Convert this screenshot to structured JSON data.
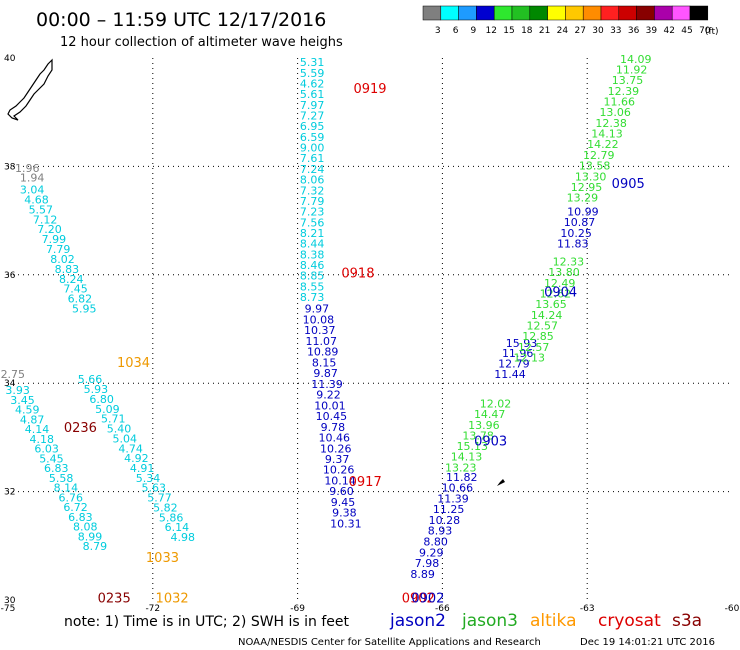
{
  "header": {
    "title": "00:00 – 11:59 UTC 12/17/2016",
    "subtitle": "12 hour collection of altimeter wave heighs"
  },
  "legend": {
    "unit": "(ft)",
    "swatches": [
      {
        "label": "3",
        "color": "#7f7f7f"
      },
      {
        "label": "6",
        "color": "#00ffff"
      },
      {
        "label": "9",
        "color": "#1e9bff"
      },
      {
        "label": "12",
        "color": "#0000d0"
      },
      {
        "label": "15",
        "color": "#2ee82e"
      },
      {
        "label": "18",
        "color": "#22c022"
      },
      {
        "label": "21",
        "color": "#008800"
      },
      {
        "label": "24",
        "color": "#ffff00"
      },
      {
        "label": "27",
        "color": "#ffc800"
      },
      {
        "label": "30",
        "color": "#ff8c00"
      },
      {
        "label": "33",
        "color": "#ff2020"
      },
      {
        "label": "36",
        "color": "#cc0000"
      },
      {
        "label": "39",
        "color": "#880000"
      },
      {
        "label": "42",
        "color": "#aa00aa"
      },
      {
        "label": "45",
        "color": "#ff55ff"
      },
      {
        "label": "70",
        "color": "#000000"
      }
    ]
  },
  "map": {
    "lon_range": [
      -75,
      -60
    ],
    "lat_range": [
      30,
      40
    ],
    "lon_ticks": [
      "-75",
      "-72",
      "-69",
      "-66",
      "-63",
      "-60"
    ],
    "lat_ticks": [
      "40",
      "38",
      "36",
      "34",
      "32",
      "30"
    ]
  },
  "colors": {
    "gray": "#808080",
    "cyan": "#00ccdd",
    "blue": "#0000c0",
    "green": "#33dd33",
    "red": "#dd0000",
    "orange": "#ee9900",
    "darkred": "#880000"
  },
  "tracks": [
    {
      "name": "track-gray",
      "color": "gray",
      "lon0": -74.6,
      "lat0": 37.9,
      "dlon": 0.1,
      "dlat": -0.18,
      "values": [
        "1.96",
        "1.94"
      ]
    },
    {
      "name": "track-cyan-left",
      "color": "cyan",
      "lon0": -74.5,
      "lat0": 37.5,
      "dlon": 0.09,
      "dlat": -0.183,
      "values": [
        "3.04",
        "4.68",
        "5.57",
        "7.12",
        "7.20",
        "7.99",
        "7.79",
        "8.02",
        "8.83",
        "8.24",
        "7.45",
        "6.82",
        "5.95"
      ]
    },
    {
      "name": "track-gray-2",
      "color": "gray",
      "lon0": -74.9,
      "lat0": 34.1,
      "dlon": 0,
      "dlat": 0,
      "values": [
        "2.75"
      ]
    },
    {
      "name": "track-cyan-left-2",
      "color": "cyan",
      "lon0": -74.8,
      "lat0": 33.8,
      "dlon": 0.1,
      "dlat": -0.18,
      "values": [
        "3.93",
        "3.45",
        "4.59",
        "4.87",
        "4.14",
        "4.18",
        "6.03",
        "5.45",
        "6.83",
        "5.58",
        "8.14",
        "6.76",
        "6.72",
        "6.83",
        "8.08",
        "8.99",
        "8.79"
      ]
    },
    {
      "name": "track-cyan-mid",
      "color": "cyan",
      "lon0": -73.3,
      "lat0": 34.0,
      "dlon": 0.12,
      "dlat": -0.182,
      "values": [
        "5.66",
        "5.93",
        "6.80",
        "5.09",
        "5.71",
        "5.40",
        "5.04",
        "4.74",
        "4.92",
        "4.91",
        "5.34",
        "5.63",
        "5.77",
        "5.82",
        "5.86",
        "6.14",
        "4.98"
      ]
    },
    {
      "name": "track-0919",
      "color": "cyan",
      "lon0": -68.7,
      "lat0": 39.85,
      "dlon": 0,
      "dlat": -0.197,
      "values": [
        "5.31",
        "5.59",
        "4.62",
        "5.61",
        "7.97",
        "7.27",
        "6.95",
        "6.59",
        "9.00",
        "7.61",
        "7.24",
        "8.06",
        "7.32",
        "7.79",
        "7.23",
        "7.56",
        "8.21",
        "8.44",
        "8.38",
        "8.46",
        "8.85",
        "8.55",
        "8.73"
      ]
    },
    {
      "name": "track-0918-blue",
      "color": "blue",
      "lon0": -68.6,
      "lat0": 35.3,
      "dlon": 0.03,
      "dlat": -0.198,
      "values": [
        "9.97",
        "10.08",
        "10.37",
        "11.07",
        "10.89",
        "8.15",
        "9.87",
        "11.39",
        "9.22",
        "10.01",
        "10.45",
        "9.78",
        "10.46",
        "10.26",
        "9.37",
        "10.26",
        "10.14",
        "9.60",
        "9.45",
        "9.38",
        "10.31"
      ]
    },
    {
      "name": "track-0903-blue",
      "color": "blue",
      "lon0": -65.6,
      "lat0": 32.2,
      "dlon": -0.09,
      "dlat": -0.199,
      "values": [
        "11.82",
        "10.66",
        "11.39",
        "11.25",
        "10.28",
        "8.93",
        "8.80",
        "9.29",
        "7.98",
        "8.89"
      ]
    },
    {
      "name": "track-0903-green",
      "color": "green",
      "lon0": -64.9,
      "lat0": 33.55,
      "dlon": -0.12,
      "dlat": -0.196,
      "values": [
        "12.02",
        "14.47",
        "13.96",
        "13.78",
        "15.13",
        "14.13",
        "13.23"
      ]
    },
    {
      "name": "track-0904-blue",
      "color": "blue",
      "lon0": -64.6,
      "lat0": 34.1,
      "dlon": 0.08,
      "dlat": 0.19,
      "values": [
        "11.44",
        "12.79",
        "11.96",
        "15.93"
      ]
    },
    {
      "name": "track-0904-green",
      "color": "green",
      "lon0": -64.2,
      "lat0": 34.4,
      "dlon": 0.09,
      "dlat": 0.197,
      "values": [
        "12.13",
        "12.57",
        "12.85",
        "12.57",
        "14.24",
        "13.65",
        "12.62",
        "12.49",
        "13.80",
        "12.33"
      ]
    },
    {
      "name": "track-0905-blue",
      "color": "blue",
      "lon0": -63.3,
      "lat0": 36.5,
      "dlon": 0.07,
      "dlat": 0.199,
      "values": [
        "11.83",
        "10.25",
        "10.87",
        "10.99"
      ]
    },
    {
      "name": "track-0905-green",
      "color": "green",
      "lon0": -63.1,
      "lat0": 37.35,
      "dlon": 0.085,
      "dlat": 0.197,
      "values": [
        "13.29",
        "12.95",
        "13.30",
        "13.58",
        "12.79",
        "14.22",
        "14.13",
        "12.38",
        "13.06",
        "11.66",
        "12.39",
        "13.75",
        "11.92",
        "14.09"
      ]
    }
  ],
  "pass_labels": [
    {
      "text": "0919",
      "color": "red",
      "lon": -67.5,
      "lat": 39.35
    },
    {
      "text": "0918",
      "color": "red",
      "lon": -67.75,
      "lat": 35.95
    },
    {
      "text": "0917",
      "color": "red",
      "lon": -67.6,
      "lat": 32.1
    },
    {
      "text": "0902",
      "color": "red",
      "lon": -66.5,
      "lat": 29.95
    },
    {
      "text": "0902",
      "color": "blue",
      "lon": -66.3,
      "lat": 29.95
    },
    {
      "text": "0903",
      "color": "blue",
      "lon": -65.0,
      "lat": 32.85
    },
    {
      "text": "0904",
      "color": "blue",
      "lon": -63.55,
      "lat": 35.6
    },
    {
      "text": "0905",
      "color": "blue",
      "lon": -62.15,
      "lat": 37.6
    },
    {
      "text": "1034",
      "color": "orange",
      "lon": -72.4,
      "lat": 34.3
    },
    {
      "text": "1033",
      "color": "orange",
      "lon": -71.8,
      "lat": 30.7
    },
    {
      "text": "1032",
      "color": "orange",
      "lon": -71.6,
      "lat": 29.95
    },
    {
      "text": "0236",
      "color": "darkred",
      "lon": -73.5,
      "lat": 33.1
    },
    {
      "text": "0235",
      "color": "darkred",
      "lon": -72.8,
      "lat": 29.95
    }
  ],
  "footer": {
    "note": "note: 1) Time is in UTC; 2) SWH is in feet",
    "satellites": [
      {
        "name": "jason2",
        "color": "#0000c0"
      },
      {
        "name": "jason3",
        "color": "#22aa22"
      },
      {
        "name": "altika",
        "color": "#ff9900"
      },
      {
        "name": "cryosat",
        "color": "#dd0000"
      },
      {
        "name": "s3a",
        "color": "#880000"
      }
    ],
    "credit": "NOAA/NESDIS Center for Satellite Applications and Research",
    "timestamp": "Dec 19 14:01:21 UTC 2016"
  }
}
